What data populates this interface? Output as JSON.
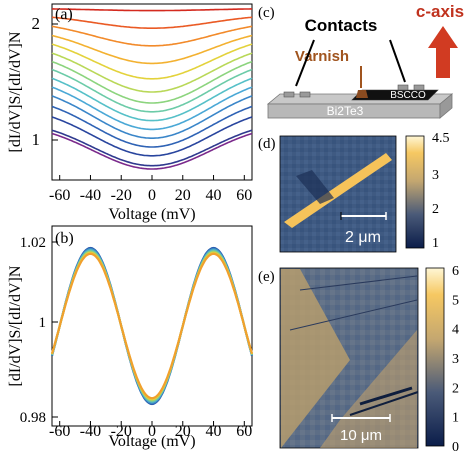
{
  "figure": {
    "panel_a": {
      "label": "(a)",
      "ylabel": "[dI/dV]S/[dI/dV]N",
      "xlabel": "Voltage (mV)",
      "xticks": [
        "-60",
        "-40",
        "-20",
        "0",
        "20",
        "40",
        "60"
      ],
      "yticks": [
        "1",
        "2"
      ]
    },
    "panel_b": {
      "label": "(b)",
      "ylabel": "[dI/dV]S/[dI/dV]N",
      "xlabel": "Voltage (mV)",
      "xticks": [
        "-60",
        "-40",
        "-20",
        "0",
        "20",
        "40",
        "60"
      ],
      "yticks": [
        "0.98",
        "1",
        "1.02"
      ]
    },
    "panel_c": {
      "label": "(c)",
      "contacts": "Contacts",
      "varnish": "Varnish",
      "caxis": "c-axis",
      "bscco": "BSCCO",
      "substrate": "Bi2Te3"
    },
    "panel_d": {
      "label": "(d)",
      "scalebar": "2 μm",
      "colorbar_ticks": [
        "1",
        "2",
        "3",
        "4.5"
      ]
    },
    "panel_e": {
      "label": "(e)",
      "scalebar": "10 μm",
      "colorbar_ticks": [
        "0",
        "1",
        "2",
        "3",
        "4",
        "5",
        "6"
      ]
    }
  },
  "chart_data": [
    {
      "type": "line",
      "panel": "a",
      "xlabel": "Voltage (mV)",
      "ylabel": "[dI/dV]S/[dI/dV]N",
      "xlim": [
        -65,
        65
      ],
      "ylim": [
        0.6,
        2.2
      ],
      "series": [
        {
          "min": 0.7,
          "end": 1.12,
          "color": "#7b2a8c"
        },
        {
          "min": 0.73,
          "end": 1.15,
          "color": "#2f3a8f"
        },
        {
          "min": 0.82,
          "end": 1.28,
          "color": "#29459e"
        },
        {
          "min": 0.9,
          "end": 1.38,
          "color": "#2f63b5"
        },
        {
          "min": 0.98,
          "end": 1.48,
          "color": "#3a86c9"
        },
        {
          "min": 1.06,
          "end": 1.56,
          "color": "#4aa8d6"
        },
        {
          "min": 1.14,
          "end": 1.64,
          "color": "#56c0c8"
        },
        {
          "min": 1.22,
          "end": 1.72,
          "color": "#6ccba8"
        },
        {
          "min": 1.3,
          "end": 1.79,
          "color": "#8cd47e"
        },
        {
          "min": 1.4,
          "end": 1.86,
          "color": "#b9d858"
        },
        {
          "min": 1.52,
          "end": 1.93,
          "color": "#e3d23b"
        },
        {
          "min": 1.66,
          "end": 1.99,
          "color": "#f3b130"
        },
        {
          "min": 1.82,
          "end": 2.05,
          "color": "#f28a2a"
        },
        {
          "min": 1.98,
          "end": 2.11,
          "color": "#ea5a24"
        },
        {
          "min": 2.14,
          "end": 2.16,
          "color": "#d42a1f"
        }
      ]
    },
    {
      "type": "line",
      "panel": "b",
      "xlabel": "Voltage (mV)",
      "ylabel": "[dI/dV]S/[dI/dV]N",
      "xlim": [
        -65,
        65
      ],
      "ylim": [
        0.975,
        1.025
      ],
      "x": [
        -65,
        -60,
        -55,
        -50,
        -45,
        -40,
        -35,
        -30,
        -25,
        -20,
        -15,
        -10,
        -5,
        0,
        5,
        10,
        15,
        20,
        25,
        30,
        35,
        40,
        45,
        50,
        55,
        60,
        65
      ],
      "series": [
        {
          "color": "#2b5fb0",
          "amp": 1.0
        },
        {
          "color": "#3e8fc7",
          "amp": 0.985
        },
        {
          "color": "#56b9c4",
          "amp": 0.97
        },
        {
          "color": "#8fd17c",
          "amp": 0.955
        },
        {
          "color": "#e0cf3e",
          "amp": 0.94
        },
        {
          "color": "#f1a02d",
          "amp": 0.925
        }
      ]
    }
  ]
}
